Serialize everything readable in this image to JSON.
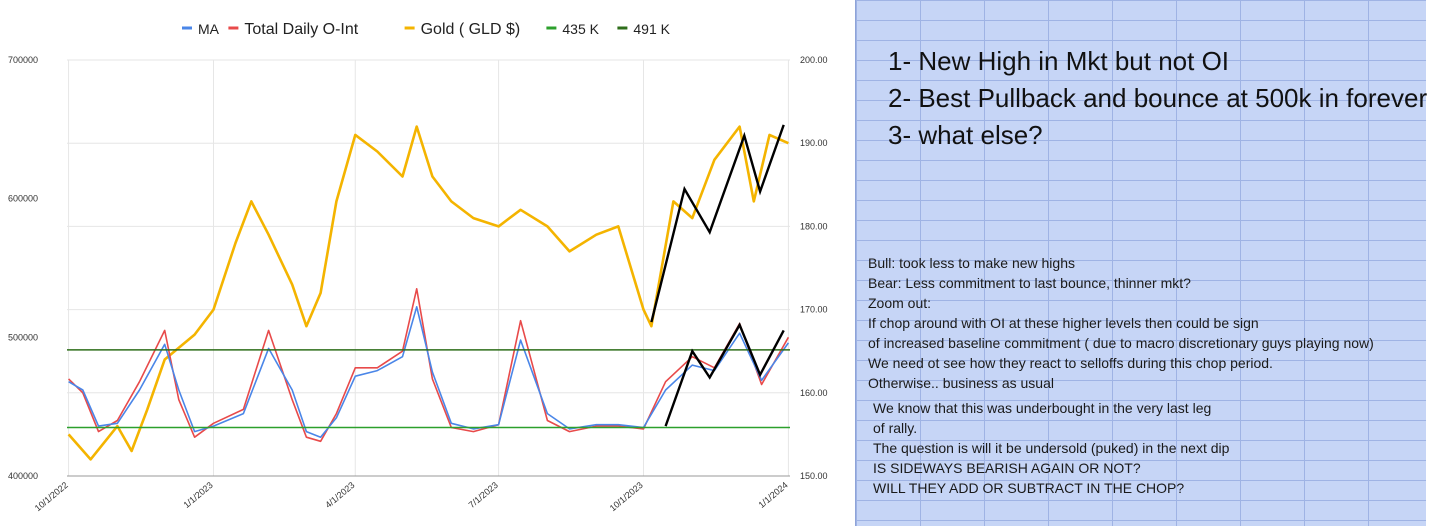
{
  "chart_data": {
    "type": "line",
    "legend": {
      "placement": "top",
      "items": [
        {
          "label": "MA",
          "color": "#4a86e8"
        },
        {
          "label": "Total Daily O-Int",
          "color": "#e84a4a"
        },
        {
          "label": "Gold ( GLD $)",
          "color": "#f4b400"
        },
        {
          "label": "435 K",
          "color": "#2ca02c"
        },
        {
          "label": "491 K",
          "color": "#2e6e1a"
        }
      ]
    },
    "x_ticks": [
      "10/1/2022",
      "1/1/2023",
      "4/1/2023",
      "7/1/2023",
      "10/1/2023",
      "1/1/2024"
    ],
    "left_axis": {
      "ylim": [
        400000,
        700000
      ],
      "ticks": [
        "400000",
        "500000",
        "600000",
        "700000"
      ]
    },
    "right_axis": {
      "ylim": [
        150,
        200
      ],
      "ticks": [
        "150.00",
        "160.00",
        "170.00",
        "180.00",
        "190.00",
        "200.00"
      ]
    },
    "grid": true,
    "series": [
      {
        "name": "Total Daily O-Int",
        "axis": "left",
        "color": "#e84a4a",
        "x": [
          "2022-10-01",
          "2022-10-10",
          "2022-10-20",
          "2022-11-01",
          "2022-11-15",
          "2022-12-01",
          "2022-12-10",
          "2022-12-20",
          "2023-01-01",
          "2023-01-20",
          "2023-02-05",
          "2023-02-20",
          "2023-03-01",
          "2023-03-10",
          "2023-03-20",
          "2023-04-01",
          "2023-04-15",
          "2023-05-01",
          "2023-05-10",
          "2023-05-20",
          "2023-06-01",
          "2023-06-15",
          "2023-07-01",
          "2023-07-15",
          "2023-08-01",
          "2023-08-15",
          "2023-09-01",
          "2023-09-15",
          "2023-10-01",
          "2023-10-15",
          "2023-11-01",
          "2023-11-15",
          "2023-12-01",
          "2023-12-15",
          "2024-01-01"
        ],
        "values": [
          470000,
          460000,
          432000,
          440000,
          468000,
          505000,
          455000,
          428000,
          438000,
          448000,
          505000,
          455000,
          428000,
          425000,
          445000,
          478000,
          478000,
          490000,
          535000,
          470000,
          435000,
          432000,
          437000,
          512000,
          440000,
          432000,
          436000,
          436000,
          434000,
          468000,
          486000,
          478000,
          510000,
          466000,
          500000
        ]
      },
      {
        "name": "MA",
        "axis": "left",
        "color": "#4a86e8",
        "x": [
          "2022-10-01",
          "2022-10-10",
          "2022-10-20",
          "2022-11-01",
          "2022-11-15",
          "2022-12-01",
          "2022-12-10",
          "2022-12-20",
          "2023-01-01",
          "2023-01-20",
          "2023-02-05",
          "2023-02-20",
          "2023-03-01",
          "2023-03-10",
          "2023-03-20",
          "2023-04-01",
          "2023-04-15",
          "2023-05-01",
          "2023-05-10",
          "2023-05-20",
          "2023-06-01",
          "2023-06-15",
          "2023-07-01",
          "2023-07-15",
          "2023-08-01",
          "2023-08-15",
          "2023-09-01",
          "2023-09-15",
          "2023-10-01",
          "2023-10-15",
          "2023-11-01",
          "2023-11-15",
          "2023-12-01",
          "2023-12-15",
          "2024-01-01"
        ],
        "values": [
          468000,
          462000,
          436000,
          438000,
          462000,
          495000,
          462000,
          432000,
          436000,
          445000,
          492000,
          462000,
          432000,
          428000,
          442000,
          472000,
          476000,
          486000,
          522000,
          475000,
          438000,
          434000,
          437000,
          498000,
          445000,
          434000,
          437000,
          437000,
          435000,
          462000,
          480000,
          476000,
          503000,
          469000,
          496000
        ]
      },
      {
        "name": "Gold ( GLD $)",
        "axis": "right",
        "color": "#f4b400",
        "x": [
          "2022-10-01",
          "2022-10-15",
          "2022-11-01",
          "2022-11-10",
          "2022-11-20",
          "2022-12-01",
          "2022-12-20",
          "2023-01-01",
          "2023-01-15",
          "2023-01-25",
          "2023-02-05",
          "2023-02-20",
          "2023-03-01",
          "2023-03-10",
          "2023-03-20",
          "2023-04-01",
          "2023-04-15",
          "2023-05-01",
          "2023-05-10",
          "2023-05-20",
          "2023-06-01",
          "2023-06-15",
          "2023-07-01",
          "2023-07-15",
          "2023-08-01",
          "2023-08-15",
          "2023-09-01",
          "2023-09-15",
          "2023-10-01",
          "2023-10-06",
          "2023-10-20",
          "2023-11-01",
          "2023-11-15",
          "2023-12-01",
          "2023-12-10",
          "2023-12-20",
          "2024-01-01"
        ],
        "values": [
          155,
          152,
          156,
          153,
          158,
          164,
          167,
          170,
          178,
          183,
          179,
          173,
          168,
          172,
          183,
          191,
          189,
          186,
          192,
          186,
          183,
          181,
          180,
          182,
          180,
          177,
          179,
          180,
          170,
          168,
          183,
          181,
          188,
          192,
          183,
          191,
          190
        ]
      }
    ],
    "reference_lines": [
      {
        "name": "435 K",
        "axis": "left",
        "value": 435000,
        "color": "#2ca02c"
      },
      {
        "name": "491 K",
        "axis": "left",
        "value": 491000,
        "color": "#2e6e1a"
      }
    ],
    "annotations": [
      {
        "type": "zigzag",
        "axis": "right",
        "color": "#000000",
        "x": [
          "2023-10-06",
          "2023-10-27",
          "2023-11-12",
          "2023-12-04",
          "2023-12-14",
          "2023-12-29"
        ],
        "values": [
          168.5,
          184.5,
          179.3,
          190.9,
          184.2,
          192.2
        ]
      },
      {
        "type": "zigzag",
        "axis": "left",
        "color": "#000000",
        "x": [
          "2023-10-15",
          "2023-11-01",
          "2023-11-12",
          "2023-12-01",
          "2023-12-14",
          "2023-12-29"
        ],
        "values": [
          436000,
          490000,
          471000,
          509000,
          473000,
          505000
        ]
      }
    ]
  },
  "right_panel": {
    "points": [
      "1- New High in Mkt but not OI",
      "2- Best Pullback and bounce at 500k in forever",
      "3- what else?"
    ],
    "notes_block_1": [
      "Bull: took less to make new highs",
      "Bear: Less commitment to last bounce, thinner mkt?",
      "Zoom out:",
      "If  chop around with OI at these higher levels then could be sign",
      "of increased baseline commitment ( due to macro discretionary guys playing now)",
      "We need ot see how they react to selloffs during this chop period.",
      "Otherwise.. business as usual"
    ],
    "notes_block_2": [
      "We know that this was underbought in the very last leg",
      "of rally.",
      "The question is will it be undersold (puked) in the next dip",
      "IS SIDEWAYS BEARISH AGAIN OR NOT?",
      "WILL THEY ADD OR SUBTRACT IN THE CHOP?"
    ]
  }
}
